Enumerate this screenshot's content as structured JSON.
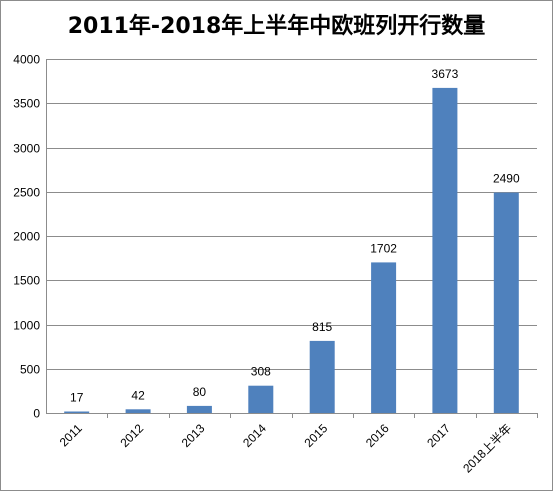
{
  "chart_data": {
    "type": "bar",
    "title": "2011年-2018年上半年中欧班列开行数量",
    "xlabel": "",
    "ylabel": "",
    "categories": [
      "2011",
      "2012",
      "2013",
      "2014",
      "2015",
      "2016",
      "2017",
      "2018上半年"
    ],
    "values": [
      17,
      42,
      80,
      308,
      815,
      1702,
      3673,
      2490
    ],
    "data_labels": [
      "17",
      "42",
      "80",
      "308",
      "815",
      "1702",
      "3673",
      "2490"
    ],
    "ylim": [
      0,
      4000
    ],
    "y_ticks": [
      "0",
      "500",
      "1000",
      "1500",
      "2000",
      "2500",
      "3000",
      "3500",
      "4000"
    ],
    "y_tick_values": [
      0,
      500,
      1000,
      1500,
      2000,
      2500,
      3000,
      3500,
      4000
    ],
    "grid": true,
    "legend": "none",
    "colors": {
      "bar": "#4f81bd",
      "grid": "#8c8c8c",
      "text": "#000000"
    }
  }
}
